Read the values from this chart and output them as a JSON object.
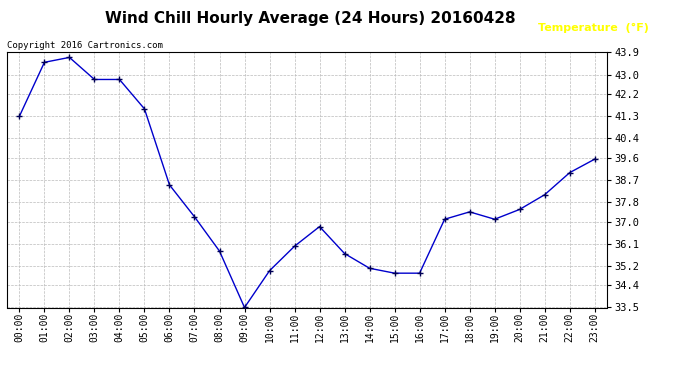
{
  "title": "Wind Chill Hourly Average (24 Hours) 20160428",
  "copyright_text": "Copyright 2016 Cartronics.com",
  "legend_label": "Temperature  (°F)",
  "hours": [
    0,
    1,
    2,
    3,
    4,
    5,
    6,
    7,
    8,
    9,
    10,
    11,
    12,
    13,
    14,
    15,
    16,
    17,
    18,
    19,
    20,
    21,
    22,
    23
  ],
  "x_labels": [
    "00:00",
    "01:00",
    "02:00",
    "03:00",
    "04:00",
    "05:00",
    "06:00",
    "07:00",
    "08:00",
    "09:00",
    "10:00",
    "11:00",
    "12:00",
    "13:00",
    "14:00",
    "15:00",
    "16:00",
    "17:00",
    "18:00",
    "19:00",
    "20:00",
    "21:00",
    "22:00",
    "23:00"
  ],
  "values": [
    41.3,
    43.5,
    43.7,
    42.8,
    42.8,
    41.6,
    38.5,
    37.2,
    35.8,
    33.5,
    35.0,
    36.0,
    36.8,
    35.7,
    35.1,
    34.9,
    34.9,
    37.1,
    37.4,
    37.1,
    37.5,
    38.1,
    39.0,
    39.55
  ],
  "y_ticks": [
    33.5,
    34.4,
    35.2,
    36.1,
    37.0,
    37.8,
    38.7,
    39.6,
    40.4,
    41.3,
    42.2,
    43.0,
    43.9
  ],
  "ylim": [
    33.5,
    43.9
  ],
  "line_color": "#0000cc",
  "marker_color": "#000055",
  "background_color": "#ffffff",
  "plot_bg_color": "#ffffff",
  "grid_color": "#bbbbbb",
  "title_fontsize": 11,
  "legend_bg_color": "#0000bb",
  "legend_text_color": "#ffff00"
}
